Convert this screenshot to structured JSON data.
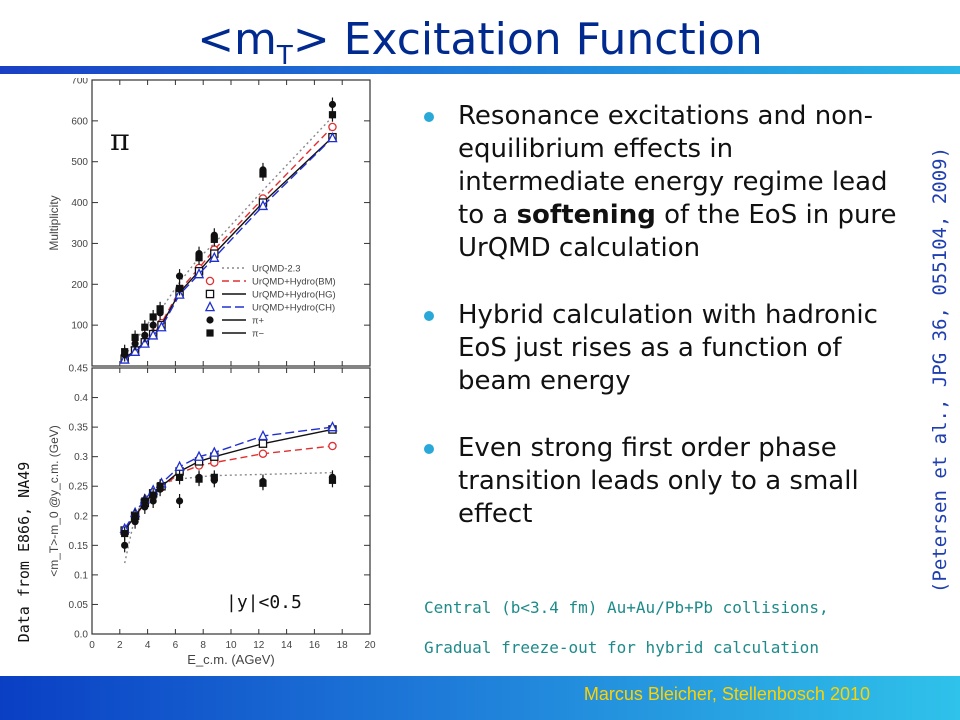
{
  "title": {
    "prefix": "<m",
    "sub": "T",
    "suffix": "> Excitation Function"
  },
  "bullets": [
    {
      "pre": "Resonance excitations and non-equilibrium effects in intermediate energy regime lead to a ",
      "bold": "softening",
      "post": " of the EoS in pure UrQMD  calculation"
    },
    {
      "pre": "Hybrid calculation with hadronic EoS just rises as a function of beam energy",
      "bold": "",
      "post": ""
    },
    {
      "pre": "Even strong first order phase transition leads only to a small effect",
      "bold": "",
      "post": ""
    }
  ],
  "notes": [
    "Central (b<3.4 fm) Au+Au/Pb+Pb collisions,",
    "Gradual freeze-out for hybrid calculation"
  ],
  "reference": "(Petersen et al., JPG 36, 055104, 2009)",
  "data_source": "Data from E866, NA49",
  "footer": "Marcus Bleicher, Stellenbosch 2010",
  "colors": {
    "accent": "#002a8f",
    "bullet": "#2aa8d8",
    "note": "#1e8a8a",
    "footer": "#ffd200",
    "bm": "#e03030",
    "hg": "#111111",
    "ch": "#2030d0",
    "urqmd": "#888888"
  },
  "chart_data": [
    {
      "type": "line",
      "panel_label": "π",
      "ylabel": "Multiplicity",
      "ylim": [
        0,
        700
      ],
      "xlim": [
        0,
        20
      ],
      "y_ticks": [
        "100",
        "200",
        "300",
        "400",
        "500",
        "600",
        "700"
      ],
      "grid": false,
      "legend_position": "bottom-right",
      "legend": [
        "UrQMD-2.3",
        "UrQMD+Hydro(BM)",
        "UrQMD+Hydro(HG)",
        "UrQMD+Hydro(CH)",
        "π+",
        "π−"
      ],
      "series": [
        {
          "name": "UrQMD-2.3",
          "x": [
            2.35,
            3.1,
            3.8,
            4.4,
            5.0,
            6.3,
            7.7,
            8.8,
            12.3,
            17.3
          ],
          "y": [
            25,
            60,
            95,
            120,
            140,
            205,
            265,
            300,
            430,
            610
          ]
        },
        {
          "name": "UrQMD+Hydro(BM)",
          "x": [
            2.35,
            3.1,
            3.8,
            4.4,
            5.0,
            6.3,
            7.7,
            8.8,
            12.3,
            17.3
          ],
          "y": [
            18,
            40,
            60,
            80,
            105,
            185,
            240,
            285,
            410,
            585
          ]
        },
        {
          "name": "UrQMD+Hydro(HG)",
          "x": [
            2.35,
            3.1,
            3.8,
            4.4,
            5.0,
            6.3,
            7.7,
            8.8,
            12.3,
            17.3
          ],
          "y": [
            18,
            38,
            58,
            78,
            100,
            180,
            232,
            275,
            400,
            560
          ]
        },
        {
          "name": "UrQMD+Hydro(CH)",
          "x": [
            2.35,
            3.1,
            3.8,
            4.4,
            5.0,
            6.3,
            7.7,
            8.8,
            12.3,
            17.3
          ],
          "y": [
            16,
            35,
            55,
            75,
            95,
            175,
            225,
            265,
            392,
            558
          ]
        },
        {
          "name": "π+",
          "x": [
            2.35,
            3.1,
            3.8,
            4.4,
            4.9,
            6.3,
            7.7,
            8.8,
            12.3,
            17.3
          ],
          "y": [
            28,
            55,
            75,
            100,
            130,
            220,
            275,
            320,
            480,
            640
          ]
        },
        {
          "name": "π−",
          "x": [
            2.35,
            3.1,
            3.8,
            4.4,
            4.9,
            6.3,
            7.7,
            8.8,
            12.3,
            17.3
          ],
          "y": [
            35,
            70,
            95,
            120,
            140,
            190,
            265,
            310,
            470,
            615
          ]
        }
      ]
    },
    {
      "type": "line",
      "panel_label": "|y|<0.5",
      "xlabel": "E_c.m. (AGeV)",
      "ylabel": "<m_T>-m_0 @y_c.m. (GeV)",
      "xlim": [
        0,
        20
      ],
      "ylim": [
        0,
        0.45
      ],
      "x_ticks": [
        "0",
        "2",
        "4",
        "6",
        "8",
        "10",
        "12",
        "14",
        "16",
        "18",
        "20"
      ],
      "y_ticks": [
        "0.0",
        "0.05",
        "0.1",
        "0.15",
        "0.2",
        "0.25",
        "0.3",
        "0.35",
        "0.4",
        "0.45"
      ],
      "grid": false,
      "series": [
        {
          "name": "UrQMD-2.3",
          "x": [
            2.35,
            3.1,
            3.8,
            4.4,
            5.0,
            6.3,
            7.7,
            8.8,
            12.3,
            17.3
          ],
          "y": [
            0.12,
            0.2,
            0.23,
            0.245,
            0.255,
            0.262,
            0.266,
            0.268,
            0.27,
            0.273
          ]
        },
        {
          "name": "UrQMD+Hydro(BM)",
          "x": [
            2.35,
            3.1,
            3.8,
            4.4,
            5.0,
            6.3,
            7.7,
            8.8,
            12.3,
            17.3
          ],
          "y": [
            0.175,
            0.2,
            0.22,
            0.235,
            0.248,
            0.272,
            0.285,
            0.29,
            0.305,
            0.318
          ]
        },
        {
          "name": "UrQMD+Hydro(HG)",
          "x": [
            2.35,
            3.1,
            3.8,
            4.4,
            5.0,
            6.3,
            7.7,
            8.8,
            12.3,
            17.3
          ],
          "y": [
            0.175,
            0.2,
            0.222,
            0.238,
            0.25,
            0.275,
            0.292,
            0.3,
            0.322,
            0.346
          ]
        },
        {
          "name": "UrQMD+Hydro(CH)",
          "x": [
            2.35,
            3.1,
            3.8,
            4.4,
            5.0,
            6.3,
            7.7,
            8.8,
            12.3,
            17.3
          ],
          "y": [
            0.178,
            0.205,
            0.228,
            0.243,
            0.255,
            0.283,
            0.3,
            0.307,
            0.335,
            0.35
          ]
        },
        {
          "name": "π+",
          "x": [
            2.35,
            3.1,
            3.8,
            4.4,
            4.9,
            6.3,
            7.7,
            8.8,
            12.3,
            17.3
          ],
          "y": [
            0.15,
            0.19,
            0.215,
            0.225,
            0.245,
            0.225,
            0.265,
            0.26,
            0.258,
            0.265
          ]
        },
        {
          "name": "π−",
          "x": [
            2.35,
            3.1,
            3.8,
            4.4,
            4.9,
            6.3,
            7.7,
            8.8,
            12.3,
            17.3
          ],
          "y": [
            0.17,
            0.2,
            0.225,
            0.235,
            0.25,
            0.265,
            0.262,
            0.265,
            0.255,
            0.26
          ]
        }
      ]
    }
  ]
}
